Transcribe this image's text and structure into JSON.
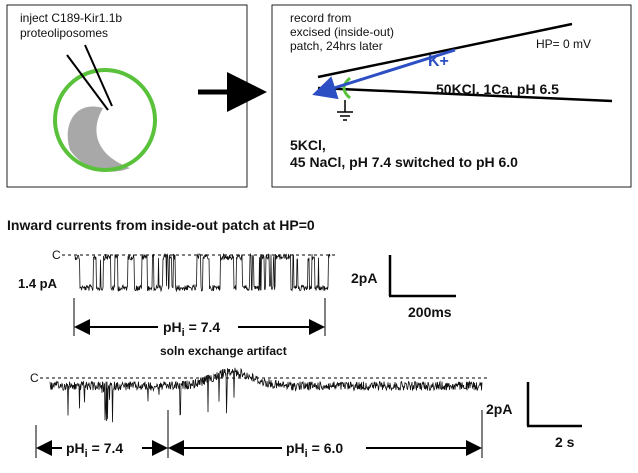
{
  "panel_a": {
    "lines": [
      "inject C189-Kir1.1b",
      "proteoliposomes"
    ]
  },
  "panel_b": {
    "record_lines": [
      "record from",
      "excised (inside-out)",
      "patch, 24hrs later"
    ],
    "holding": "HP= 0 mV",
    "ion": "K+",
    "pipette_solution": "50KCl, 1Ca, pH 6.5",
    "bath_lines": [
      "5KCl,",
      "45 NaCl, pH 7.4 switched to pH 6.0"
    ]
  },
  "trace_1": {
    "title": "Inward currents from inside-out patch at HP=0",
    "closed_label": "C",
    "amplitude": "1.4 pA",
    "scale_y": "2pA",
    "scale_x": "200ms",
    "ph_label": {
      "base": "pH",
      "sub": "i",
      "rest": " = 7.4"
    }
  },
  "trace_2": {
    "annotation": "soln exchange artifact",
    "closed_label": "C",
    "scale_y": "2pA",
    "scale_x": "2 s",
    "ph_labels": [
      {
        "base": "pH",
        "sub": "i",
        "rest": " = 7.4"
      },
      {
        "base": "pH",
        "sub": "i",
        "rest": " = 6.0"
      }
    ]
  }
}
